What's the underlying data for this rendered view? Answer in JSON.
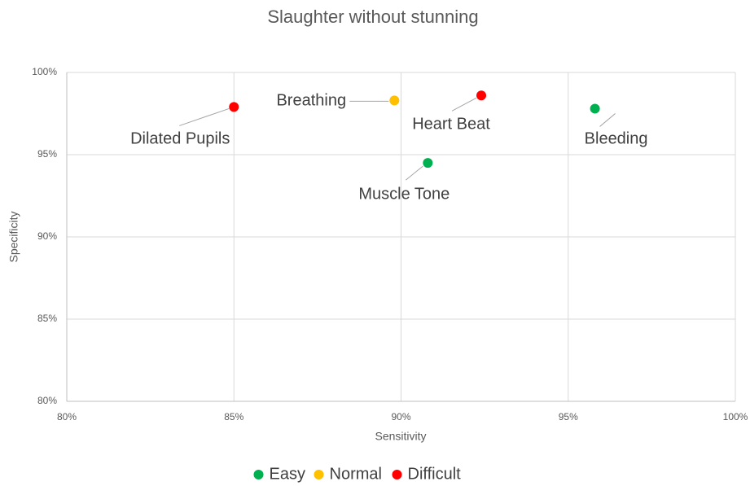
{
  "chart_data": {
    "type": "scatter",
    "title": "Slaughter without stunning",
    "x_label": "Sensitivity",
    "y_label": "Specificity",
    "xlim": [
      80,
      100
    ],
    "ylim": [
      80,
      100
    ],
    "xticks": [
      {
        "value": 80,
        "label": "80%"
      },
      {
        "value": 85,
        "label": "85%"
      },
      {
        "value": 90,
        "label": "90%"
      },
      {
        "value": 95,
        "label": "95%"
      },
      {
        "value": 100,
        "label": "100%"
      }
    ],
    "yticks": [
      {
        "value": 80,
        "label": "80%"
      },
      {
        "value": 85,
        "label": "85%"
      },
      {
        "value": 90,
        "label": "90%"
      },
      {
        "value": 95,
        "label": "95%"
      },
      {
        "value": 100,
        "label": "100%"
      }
    ],
    "grid": true,
    "legend": "bottom",
    "series": [
      {
        "name": "Easy",
        "color": "#00b050",
        "x": [
          90.8,
          95.8
        ],
        "values": [
          94.5,
          97.8
        ],
        "labels": [
          "Muscle Tone",
          "Bleeding"
        ]
      },
      {
        "name": "Normal",
        "color": "#ffc000",
        "x": [
          89.8
        ],
        "values": [
          98.3
        ],
        "labels": [
          "Breathing"
        ]
      },
      {
        "name": "Difficult",
        "color": "#ff0000",
        "x": [
          85.0,
          92.4
        ],
        "values": [
          97.9,
          98.6
        ],
        "labels": [
          "Dilated Pupils",
          "Heart Beat"
        ]
      }
    ]
  }
}
